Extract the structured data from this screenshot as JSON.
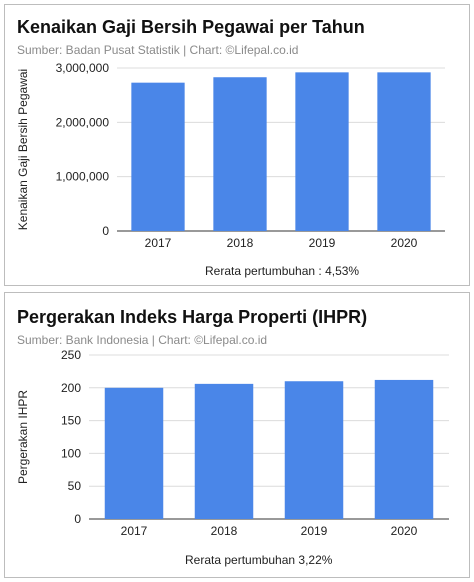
{
  "chart_data": [
    {
      "type": "bar",
      "title": "Kenaikan Gaji Bersih Pegawai per Tahun",
      "subtitle": "Sumber: Badan Pusat Statistik | Chart: ©Lifepal.co.id",
      "xlabel": "",
      "ylabel": "Kenaikan Gaji Bersih Pegawai",
      "categories": [
        "2017",
        "2018",
        "2019",
        "2020"
      ],
      "values": [
        2730000,
        2830000,
        2920000,
        2920000
      ],
      "ylim": [
        0,
        3000000
      ],
      "yticks": [
        0,
        1000000,
        2000000,
        3000000
      ],
      "ytick_labels": [
        "0",
        "1,000,000",
        "2,000,000",
        "3,000,000"
      ],
      "annotation": "Rerata pertumbuhan : 4,53%",
      "grid": true,
      "color": "#4a86e8"
    },
    {
      "type": "bar",
      "title": "Pergerakan Indeks Harga Properti (IHPR)",
      "subtitle": "Sumber: Bank Indonesia | Chart: ©Lifepal.co.id",
      "xlabel": "",
      "ylabel": "Pergerakan IHPR",
      "categories": [
        "2017",
        "2018",
        "2019",
        "2020"
      ],
      "values": [
        200,
        206,
        210,
        212
      ],
      "ylim": [
        0,
        250
      ],
      "yticks": [
        0,
        50,
        100,
        150,
        200,
        250
      ],
      "ytick_labels": [
        "0",
        "50",
        "100",
        "150",
        "200",
        "250"
      ],
      "annotation": "Rerata pertumbuhan  3,22%",
      "grid": true,
      "color": "#4a86e8"
    }
  ]
}
